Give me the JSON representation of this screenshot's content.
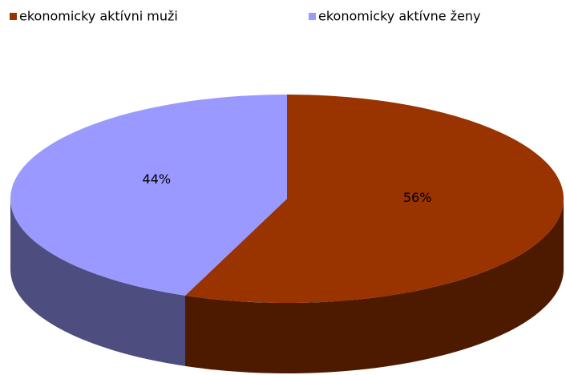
{
  "chart_data": {
    "type": "pie",
    "categories": [
      "ekonomicky aktívni muži",
      "ekonomicky aktívne ženy"
    ],
    "values": [
      56,
      44
    ],
    "value_labels": [
      "56%",
      "44%"
    ],
    "colors": [
      "#993300",
      "#9999ff"
    ],
    "legend": "top"
  }
}
